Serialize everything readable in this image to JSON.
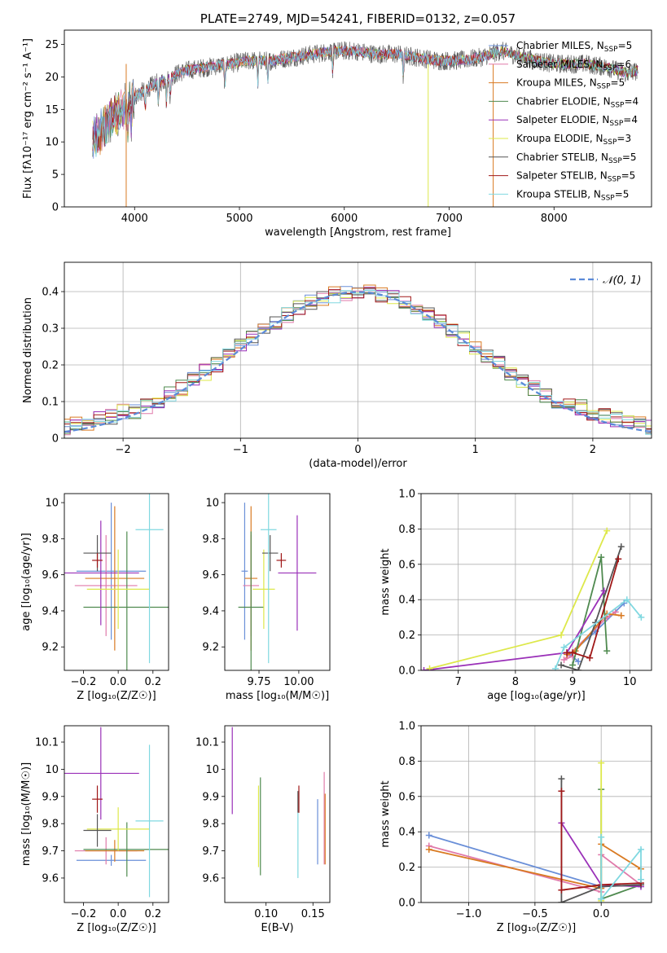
{
  "colors": {
    "Chabrier MILES": "#6a8fd8",
    "Salpeter MILES": "#e07aaa",
    "Kroupa MILES": "#d97a22",
    "Chabrier ELODIE": "#4f8a4f",
    "Salpeter ELODIE": "#9a30b8",
    "Kroupa ELODIE": "#dde84a",
    "Chabrier STELIB": "#555555",
    "Salpeter STELIB": "#a01818",
    "Kroupa STELIB": "#80d8e0"
  },
  "chart_data": [
    {
      "id": "spectrum",
      "type": "line",
      "title": "PLATE=2749, MJD=54241, FIBERID=0132, z=0.057",
      "xlabel": "wavelength [Angstrom, rest frame]",
      "ylabel": "Flux [fλ10⁻¹⁷ erg cm⁻² s⁻¹ A⁻¹]",
      "xlim": [
        3330,
        8930
      ],
      "ylim": [
        0,
        27.2
      ],
      "xticks": [
        4000,
        5000,
        6000,
        7000,
        8000
      ],
      "yticks": [
        0,
        5,
        10,
        15,
        20,
        25
      ],
      "legend_position": "right",
      "legend": [
        {
          "name": "Chabrier MILES",
          "nssp": "5"
        },
        {
          "name": "Salpeter MILES",
          "nssp": "6"
        },
        {
          "name": "Kroupa MILES",
          "nssp": "5"
        },
        {
          "name": "Chabrier ELODIE",
          "nssp": "4"
        },
        {
          "name": "Salpeter ELODIE",
          "nssp": "4"
        },
        {
          "name": "Kroupa ELODIE",
          "nssp": "3"
        },
        {
          "name": "Chabrier STELIB",
          "nssp": "5"
        },
        {
          "name": "Salpeter STELIB",
          "nssp": "5"
        },
        {
          "name": "Kroupa STELIB",
          "nssp": "5"
        }
      ],
      "continuum": [
        [
          3600,
          10
        ],
        [
          3700,
          12
        ],
        [
          3800,
          14
        ],
        [
          3900,
          15
        ],
        [
          4000,
          17
        ],
        [
          4100,
          18
        ],
        [
          4200,
          19
        ],
        [
          4300,
          19.5
        ],
        [
          4400,
          20.5
        ],
        [
          4500,
          21
        ],
        [
          4700,
          21.5
        ],
        [
          4900,
          22
        ],
        [
          5100,
          22.5
        ],
        [
          5300,
          22.5
        ],
        [
          5500,
          23
        ],
        [
          5700,
          23.5
        ],
        [
          5900,
          24
        ],
        [
          6100,
          24
        ],
        [
          6300,
          23.5
        ],
        [
          6500,
          23.5
        ],
        [
          6700,
          23
        ],
        [
          6900,
          22.5
        ],
        [
          7100,
          22.5
        ],
        [
          7300,
          23
        ],
        [
          7500,
          24
        ],
        [
          7700,
          23
        ],
        [
          8000,
          22
        ],
        [
          8300,
          22
        ],
        [
          8500,
          21.5
        ],
        [
          8700,
          20.5
        ],
        [
          8800,
          21
        ]
      ]
    },
    {
      "id": "residuals",
      "type": "line",
      "xlabel": "(data-model)/error",
      "ylabel": "Normed distribution",
      "xlim": [
        -2.5,
        2.5
      ],
      "ylim": [
        0,
        0.48
      ],
      "xticks": [
        -2,
        -1,
        0,
        1,
        2
      ],
      "xtick_labels": [
        "−2",
        "−1",
        "0",
        "1",
        "2"
      ],
      "yticks": [
        0,
        0.1,
        0.2,
        0.3,
        0.4
      ],
      "grid": true,
      "bin_width": 0.1,
      "reference_curve": "𝒩(0, 1)",
      "legend_position": "top-right"
    },
    {
      "id": "age-vs-Z",
      "type": "scatter",
      "xlabel": "Z [log₁₀(Z/Z☉)]",
      "ylabel": "age  [log₁₀(age/yr)]",
      "xlim": [
        -0.31,
        0.29
      ],
      "ylim": [
        9.07,
        10.05
      ],
      "xticks": [
        -0.2,
        0.0,
        0.2
      ],
      "xtick_labels": [
        "−0.2",
        "0.0",
        "0.2"
      ],
      "yticks": [
        9.2,
        9.4,
        9.6,
        9.8,
        10.0
      ],
      "points": [
        {
          "series": "Chabrier MILES",
          "x": -0.04,
          "xerr": 0.2,
          "y": 9.62,
          "yerr": 0.38
        },
        {
          "series": "Salpeter MILES",
          "x": -0.07,
          "xerr": 0.18,
          "y": 9.54,
          "yerr": 0.28
        },
        {
          "series": "Kroupa MILES",
          "x": -0.02,
          "xerr": 0.17,
          "y": 9.58,
          "yerr": 0.4
        },
        {
          "series": "Chabrier ELODIE",
          "x": 0.05,
          "xerr": 0.25,
          "y": 9.42,
          "yerr": 0.42
        },
        {
          "series": "Salpeter ELODIE",
          "x": -0.1,
          "xerr": 0.22,
          "y": 9.61,
          "yerr": 0.29
        },
        {
          "series": "Kroupa ELODIE",
          "x": 0.0,
          "xerr": 0.18,
          "y": 9.52,
          "yerr": 0.22
        },
        {
          "series": "Chabrier STELIB",
          "x": -0.12,
          "xerr": 0.08,
          "y": 9.72,
          "yerr": 0.1
        },
        {
          "series": "Salpeter STELIB",
          "x": -0.12,
          "xerr": 0.03,
          "y": 9.68,
          "yerr": 0.04
        },
        {
          "series": "Kroupa STELIB",
          "x": 0.18,
          "xerr": 0.08,
          "y": 9.85,
          "yerr": 0.74
        }
      ]
    },
    {
      "id": "age-vs-mass",
      "type": "scatter",
      "xlabel": "mass [log₁₀(M/M☉)]",
      "ylabel": "",
      "xlim": [
        9.535,
        10.195
      ],
      "ylim": [
        9.07,
        10.05
      ],
      "xticks": [
        9.75,
        10.0
      ],
      "xtick_labels": [
        "9.75",
        "10.00"
      ],
      "yticks": [
        9.2,
        9.4,
        9.6,
        9.8,
        10.0
      ],
      "points": [
        {
          "series": "Chabrier MILES",
          "x": 9.66,
          "xerr": 0.02,
          "y": 9.62,
          "yerr": 0.38
        },
        {
          "series": "Salpeter MILES",
          "x": 9.7,
          "xerr": 0.05,
          "y": 9.54,
          "yerr": 0.28
        },
        {
          "series": "Kroupa MILES",
          "x": 9.7,
          "xerr": 0.04,
          "y": 9.58,
          "yerr": 0.4
        },
        {
          "series": "Chabrier ELODIE",
          "x": 9.7,
          "xerr": 0.08,
          "y": 9.42,
          "yerr": 0.42
        },
        {
          "series": "Salpeter ELODIE",
          "x": 9.99,
          "xerr": 0.12,
          "y": 9.61,
          "yerr": 0.32
        },
        {
          "series": "Kroupa ELODIE",
          "x": 9.78,
          "xerr": 0.07,
          "y": 9.52,
          "yerr": 0.22
        },
        {
          "series": "Chabrier STELIB",
          "x": 9.82,
          "xerr": 0.05,
          "y": 9.72,
          "yerr": 0.1
        },
        {
          "series": "Salpeter STELIB",
          "x": 9.89,
          "xerr": 0.03,
          "y": 9.68,
          "yerr": 0.04
        },
        {
          "series": "Kroupa STELIB",
          "x": 9.81,
          "xerr": 0.05,
          "y": 9.85,
          "yerr": 0.74
        }
      ]
    },
    {
      "id": "weight-vs-age",
      "type": "line",
      "xlabel": "age  [log₁₀(age/yr)]",
      "ylabel": "mass weight",
      "xlim": [
        6.35,
        10.38
      ],
      "ylim": [
        0,
        1
      ],
      "xticks": [
        7,
        8,
        9,
        10
      ],
      "yticks": [
        0,
        0.2,
        0.4,
        0.6,
        0.8,
        1.0
      ],
      "ytick_labels": [
        "0.0",
        "0.2",
        "0.4",
        "0.6",
        "0.8",
        "1.0"
      ],
      "grid": true,
      "series": [
        {
          "color_of": "Chabrier MILES",
          "points": [
            [
              9.1,
              0.05
            ],
            [
              8.95,
              0.09
            ],
            [
              9.4,
              0.22
            ],
            [
              9.9,
              0.38
            ]
          ]
        },
        {
          "color_of": "Salpeter MILES",
          "points": [
            [
              9.0,
              0.08
            ],
            [
              8.85,
              0.06
            ],
            [
              9.6,
              0.3
            ],
            [
              9.75,
              0.33
            ]
          ]
        },
        {
          "color_of": "Kroupa MILES",
          "points": [
            [
              8.9,
              0.09
            ],
            [
              9.05,
              0.11
            ],
            [
              9.6,
              0.32
            ],
            [
              9.85,
              0.31
            ]
          ]
        },
        {
          "color_of": "Chabrier ELODIE",
          "points": [
            [
              9.0,
              0.03
            ],
            [
              9.5,
              0.64
            ],
            [
              9.6,
              0.11
            ]
          ]
        },
        {
          "color_of": "Salpeter ELODIE",
          "points": [
            [
              6.4,
              0.0
            ],
            [
              8.9,
              0.1
            ],
            [
              9.55,
              0.45
            ]
          ]
        },
        {
          "color_of": "Kroupa ELODIE",
          "points": [
            [
              6.5,
              0.01
            ],
            [
              8.8,
              0.2
            ],
            [
              9.6,
              0.79
            ]
          ]
        },
        {
          "color_of": "Chabrier STELIB",
          "points": [
            [
              8.8,
              0.03
            ],
            [
              9.1,
              0.0
            ],
            [
              9.4,
              0.27
            ],
            [
              9.85,
              0.7
            ]
          ]
        },
        {
          "color_of": "Salpeter STELIB",
          "points": [
            [
              8.9,
              0.1
            ],
            [
              9.0,
              0.1
            ],
            [
              9.3,
              0.07
            ],
            [
              9.8,
              0.63
            ]
          ]
        },
        {
          "color_of": "Kroupa STELIB",
          "points": [
            [
              8.7,
              0.01
            ],
            [
              8.85,
              0.13
            ],
            [
              9.95,
              0.4
            ],
            [
              10.2,
              0.3
            ]
          ]
        }
      ]
    },
    {
      "id": "mass-vs-Z",
      "type": "scatter",
      "xlabel": "Z [log₁₀(Z/Z☉)]",
      "ylabel": "mass [log₁₀(M/M☉)]",
      "xlim": [
        -0.31,
        0.29
      ],
      "ylim": [
        9.51,
        10.16
      ],
      "xticks": [
        -0.2,
        0.0,
        0.2
      ],
      "xtick_labels": [
        "−0.2",
        "0.0",
        "0.2"
      ],
      "yticks": [
        9.6,
        9.7,
        9.8,
        9.9,
        10.0,
        10.1
      ],
      "points": [
        {
          "series": "Chabrier MILES",
          "x": -0.04,
          "xerr": 0.2,
          "y": 9.665,
          "yerr": 0.02
        },
        {
          "series": "Salpeter MILES",
          "x": -0.07,
          "xerr": 0.18,
          "y": 9.7,
          "yerr": 0.05
        },
        {
          "series": "Kroupa MILES",
          "x": -0.02,
          "xerr": 0.17,
          "y": 9.7,
          "yerr": 0.04
        },
        {
          "series": "Chabrier ELODIE",
          "x": 0.05,
          "xerr": 0.25,
          "y": 9.705,
          "yerr": 0.1
        },
        {
          "series": "Salpeter ELODIE",
          "x": -0.1,
          "xerr": 0.22,
          "y": 9.985,
          "yerr": 0.17
        },
        {
          "series": "Kroupa ELODIE",
          "x": 0.0,
          "xerr": 0.18,
          "y": 9.78,
          "yerr": 0.08
        },
        {
          "series": "Chabrier STELIB",
          "x": -0.12,
          "xerr": 0.08,
          "y": 9.775,
          "yerr": 0.06
        },
        {
          "series": "Salpeter STELIB",
          "x": -0.12,
          "xerr": 0.03,
          "y": 9.89,
          "yerr": 0.05
        },
        {
          "series": "Kroupa STELIB",
          "x": 0.18,
          "xerr": 0.08,
          "y": 9.81,
          "yerr": 0.28
        }
      ]
    },
    {
      "id": "mass-vs-ebv",
      "type": "scatter",
      "xlabel": "E(B-V)",
      "ylabel": "",
      "xlim": [
        0.056,
        0.168
      ],
      "ylim": [
        9.51,
        10.16
      ],
      "xticks": [
        0.1,
        0.15
      ],
      "xtick_labels": [
        "0.10",
        "0.15"
      ],
      "yticks": [
        9.6,
        9.7,
        9.8,
        9.9,
        10.0,
        10.1
      ],
      "points": [
        {
          "series": "Chabrier MILES",
          "x": 0.155,
          "y": 9.77,
          "yerr": 0.12
        },
        {
          "series": "Salpeter MILES",
          "x": 0.162,
          "y": 9.82,
          "yerr": 0.17
        },
        {
          "series": "Kroupa MILES",
          "x": 0.163,
          "y": 9.78,
          "yerr": 0.13
        },
        {
          "series": "Chabrier ELODIE",
          "x": 0.094,
          "y": 9.79,
          "yerr": 0.18
        },
        {
          "series": "Salpeter ELODIE",
          "x": 0.064,
          "y": 9.995,
          "yerr": 0.16
        },
        {
          "series": "Kroupa ELODIE",
          "x": 0.092,
          "y": 9.79,
          "yerr": 0.15
        },
        {
          "series": "Chabrier STELIB",
          "x": 0.134,
          "y": 9.88,
          "yerr": 0.04
        },
        {
          "series": "Salpeter STELIB",
          "x": 0.135,
          "y": 9.89,
          "yerr": 0.05
        },
        {
          "series": "Kroupa STELIB",
          "x": 0.134,
          "y": 9.72,
          "yerr": 0.12
        }
      ]
    },
    {
      "id": "weight-vs-Z",
      "type": "line",
      "xlabel": "Z [log₁₀(Z/Z☉)]",
      "ylabel": "mass weight",
      "xlim": [
        -1.36,
        0.38
      ],
      "ylim": [
        0,
        1
      ],
      "xticks": [
        -1.0,
        -0.5,
        0.0
      ],
      "xtick_labels": [
        "−1.0",
        "−0.5",
        "0.0"
      ],
      "yticks": [
        0,
        0.2,
        0.4,
        0.6,
        0.8,
        1.0
      ],
      "ytick_labels": [
        "0.0",
        "0.2",
        "0.4",
        "0.6",
        "0.8",
        "1.0"
      ],
      "grid": true,
      "series": [
        {
          "color_of": "Chabrier MILES",
          "points": [
            [
              -1.3,
              0.38
            ],
            [
              0.0,
              0.09
            ],
            [
              0.3,
              0.1
            ]
          ]
        },
        {
          "color_of": "Salpeter MILES",
          "points": [
            [
              -1.3,
              0.32
            ],
            [
              0.0,
              0.06
            ],
            [
              0.0,
              0.27
            ],
            [
              0.3,
              0.1
            ]
          ]
        },
        {
          "color_of": "Kroupa MILES",
          "points": [
            [
              -1.3,
              0.3
            ],
            [
              0.0,
              0.08
            ],
            [
              0.0,
              0.33
            ],
            [
              0.3,
              0.19
            ]
          ]
        },
        {
          "color_of": "Chabrier ELODIE",
          "points": [
            [
              0.0,
              0.64
            ],
            [
              0.0,
              0.02
            ],
            [
              0.3,
              0.1
            ]
          ]
        },
        {
          "color_of": "Salpeter ELODIE",
          "points": [
            [
              -0.3,
              0.45
            ],
            [
              0.0,
              0.1
            ],
            [
              0.3,
              0.09
            ]
          ]
        },
        {
          "color_of": "Kroupa ELODIE",
          "points": [
            [
              0.0,
              0.79
            ],
            [
              0.0,
              0.01
            ]
          ]
        },
        {
          "color_of": "Chabrier STELIB",
          "points": [
            [
              -0.3,
              0.7
            ],
            [
              -0.3,
              0.0
            ],
            [
              0.0,
              0.09
            ],
            [
              0.3,
              0.1
            ]
          ]
        },
        {
          "color_of": "Salpeter STELIB",
          "points": [
            [
              -0.3,
              0.63
            ],
            [
              -0.3,
              0.07
            ],
            [
              0.0,
              0.1
            ],
            [
              0.3,
              0.11
            ]
          ]
        },
        {
          "color_of": "Kroupa STELIB",
          "points": [
            [
              0.0,
              0.37
            ],
            [
              0.0,
              0.02
            ],
            [
              0.3,
              0.3
            ],
            [
              0.3,
              0.13
            ]
          ]
        }
      ]
    }
  ]
}
